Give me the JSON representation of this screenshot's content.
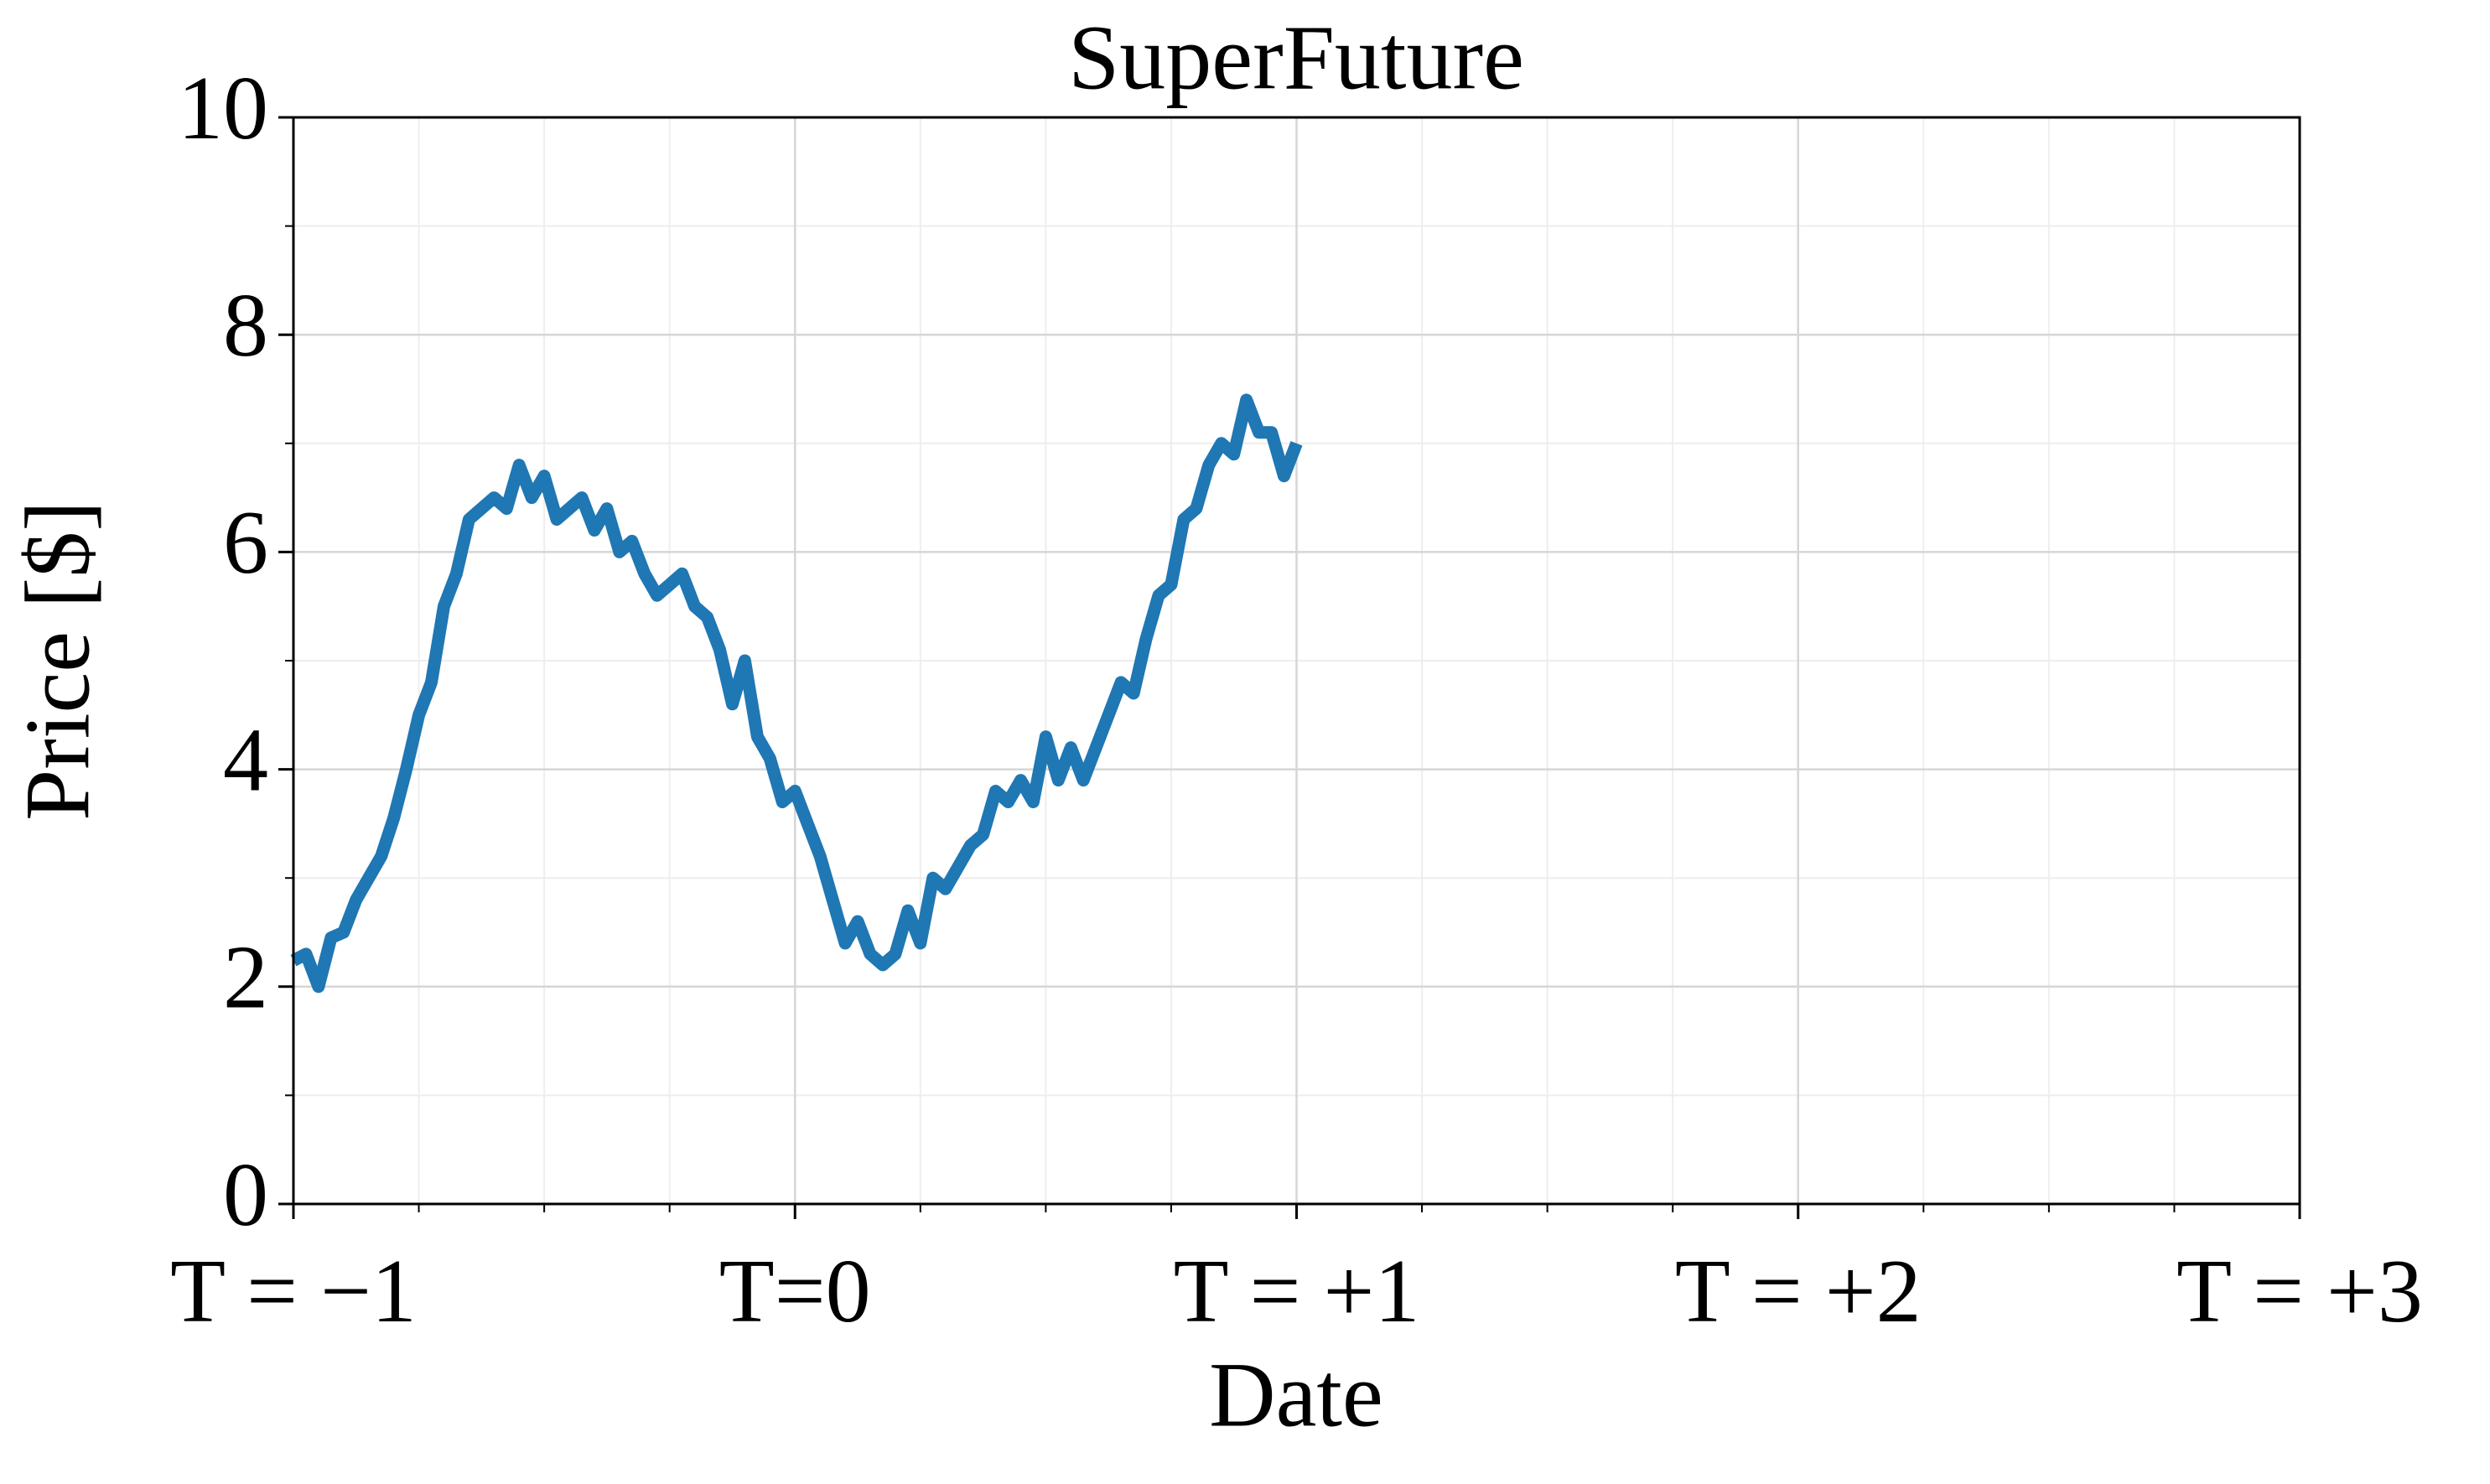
{
  "chart_data": {
    "type": "line",
    "title": "SuperFuture",
    "xlabel": "Date",
    "ylabel": "Price [$]",
    "x": [
      -1,
      -0.975,
      -0.95,
      -0.925,
      -0.9,
      -0.875,
      -0.85,
      -0.825,
      -0.8,
      -0.775,
      -0.75,
      -0.725,
      -0.7,
      -0.675,
      -0.65,
      -0.625,
      -0.6,
      -0.575,
      -0.55,
      -0.525,
      -0.5,
      -0.475,
      -0.45,
      -0.425,
      -0.4,
      -0.375,
      -0.35,
      -0.325,
      -0.3,
      -0.275,
      -0.25,
      -0.225,
      -0.2,
      -0.175,
      -0.15,
      -0.125,
      -0.1,
      -0.075,
      -0.05,
      -0.025,
      0,
      0.025,
      0.05,
      0.075,
      0.1,
      0.125,
      0.15,
      0.175,
      0.2,
      0.225,
      0.25,
      0.275,
      0.3,
      0.325,
      0.35,
      0.375,
      0.4,
      0.425,
      0.45,
      0.475,
      0.5,
      0.525,
      0.55,
      0.575,
      0.6,
      0.625,
      0.65,
      0.675,
      0.7,
      0.725,
      0.75,
      0.775,
      0.8,
      0.825,
      0.85,
      0.875,
      0.9,
      0.925,
      0.95,
      0.975,
      1
    ],
    "series": [
      {
        "name": "SuperFuture",
        "color": "#1f77b4",
        "values": [
          2.24,
          2.3,
          2.0,
          2.45,
          2.5,
          2.8,
          3.0,
          3.2,
          3.55,
          4.0,
          4.5,
          4.8,
          5.5,
          5.8,
          6.3,
          6.4,
          6.5,
          6.4,
          6.8,
          6.5,
          6.7,
          6.3,
          6.4,
          6.5,
          6.2,
          6.4,
          6.0,
          6.1,
          5.8,
          5.6,
          5.7,
          5.8,
          5.5,
          5.4,
          5.1,
          4.6,
          5.0,
          4.3,
          4.1,
          3.7,
          3.8,
          3.5,
          3.2,
          2.8,
          2.4,
          2.6,
          2.3,
          2.2,
          2.3,
          2.7,
          2.4,
          3.0,
          2.9,
          3.1,
          3.3,
          3.4,
          3.8,
          3.7,
          3.9,
          3.7,
          4.3,
          3.9,
          4.2,
          3.9,
          4.2,
          4.5,
          4.8,
          4.7,
          5.2,
          5.6,
          5.7,
          6.3,
          6.4,
          6.8,
          7.0,
          6.9,
          7.4,
          7.1,
          7.1,
          6.7,
          7.0
        ]
      }
    ],
    "xlim": [
      -1,
      3
    ],
    "xticks": [
      {
        "value": -1,
        "label": "T = −1"
      },
      {
        "value": 0,
        "label": "T=0"
      },
      {
        "value": 1,
        "label": "T = +1"
      },
      {
        "value": 2,
        "label": "T = +2"
      },
      {
        "value": 3,
        "label": "T = +3"
      }
    ],
    "xticks_minor": [
      -0.75,
      -0.5,
      -0.25,
      0.25,
      0.5,
      0.75,
      1.25,
      1.5,
      1.75,
      2.25,
      2.5,
      2.75
    ],
    "ylim": [
      0,
      10
    ],
    "yticks": [
      0,
      2,
      4,
      6,
      8,
      10
    ],
    "yticks_minor": [
      1,
      3,
      5,
      7,
      9
    ],
    "grid": true
  }
}
